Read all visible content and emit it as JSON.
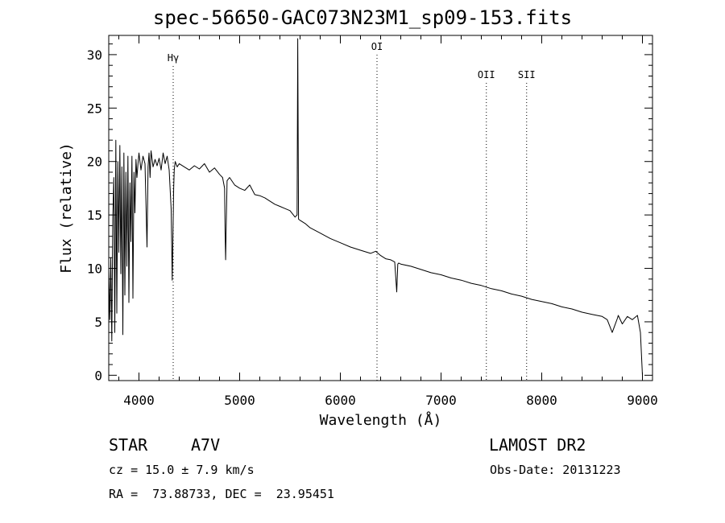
{
  "chart_data": {
    "type": "line",
    "title": "spec-56650-GAC073N23M1_sp09-153.fits",
    "xlabel": "Wavelength (Å)",
    "ylabel": "Flux (relative)",
    "xlim": [
      3700,
      9100
    ],
    "ylim": [
      -0.5,
      31.8
    ],
    "xticks": [
      4000,
      5000,
      6000,
      7000,
      8000,
      9000
    ],
    "yticks": [
      0,
      5,
      10,
      15,
      20,
      25,
      30
    ],
    "grid": false,
    "series": [
      {
        "x": [
          3700,
          3710,
          3720,
          3730,
          3740,
          3750,
          3760,
          3770,
          3780,
          3790,
          3800,
          3810,
          3820,
          3830,
          3840,
          3850,
          3860,
          3870,
          3880,
          3890,
          3900,
          3910,
          3920,
          3930,
          3940,
          3950,
          3960,
          3970,
          3980,
          3990,
          4000,
          4020,
          4040,
          4060,
          4080,
          4090,
          4100,
          4110,
          4120,
          4140,
          4160,
          4180,
          4200,
          4220,
          4240,
          4260,
          4280,
          4300,
          4320,
          4330,
          4340,
          4345,
          4350,
          4360,
          4380,
          4400,
          4450,
          4500,
          4550,
          4600,
          4650,
          4700,
          4750,
          4800,
          4830,
          4850,
          4855,
          4861,
          4866,
          4875,
          4900,
          4950,
          5000,
          5050,
          5100,
          5150,
          5200,
          5250,
          5300,
          5350,
          5400,
          5450,
          5500,
          5550,
          5570,
          5577,
          5585,
          5600,
          5650,
          5700,
          5800,
          5900,
          6000,
          6100,
          6200,
          6300,
          6350,
          6400,
          6450,
          6500,
          6540,
          6560,
          6570,
          6580,
          6600,
          6700,
          6800,
          6900,
          7000,
          7100,
          7200,
          7300,
          7400,
          7500,
          7600,
          7700,
          7800,
          7900,
          8000,
          8100,
          8200,
          8300,
          8400,
          8500,
          8600,
          8650,
          8700,
          8750,
          8760,
          8800,
          8850,
          8900,
          8950,
          8980,
          9000
        ],
        "values": [
          9.8,
          5.2,
          11.0,
          3.2,
          14.8,
          18.5,
          4.0,
          22.0,
          5.8,
          20.0,
          11.5,
          21.5,
          9.5,
          19.5,
          3.8,
          20.8,
          7.5,
          19.0,
          10.2,
          20.5,
          6.8,
          18.0,
          12.5,
          20.5,
          7.2,
          19.0,
          15.2,
          20.2,
          18.5,
          19.8,
          20.8,
          19.2,
          20.5,
          19.8,
          12.0,
          19.5,
          20.8,
          18.5,
          21.0,
          19.5,
          20.2,
          19.6,
          20.3,
          19.2,
          20.8,
          19.8,
          20.5,
          19.2,
          15.5,
          8.9,
          14.5,
          17.5,
          19.2,
          20.0,
          19.5,
          19.8,
          19.5,
          19.2,
          19.6,
          19.3,
          19.8,
          19.0,
          19.4,
          18.8,
          18.5,
          17.5,
          13.5,
          10.8,
          14.0,
          18.2,
          18.5,
          17.8,
          17.5,
          17.3,
          17.8,
          16.9,
          16.8,
          16.6,
          16.3,
          16.0,
          15.8,
          15.6,
          15.4,
          14.8,
          15.0,
          31.5,
          14.6,
          14.5,
          14.2,
          13.8,
          13.3,
          12.8,
          12.4,
          12.0,
          11.7,
          11.4,
          11.6,
          11.2,
          10.9,
          10.8,
          10.6,
          7.8,
          10.4,
          10.5,
          10.4,
          10.2,
          9.9,
          9.6,
          9.4,
          9.1,
          8.9,
          8.6,
          8.4,
          8.1,
          7.9,
          7.6,
          7.4,
          7.1,
          6.9,
          6.7,
          6.4,
          6.2,
          5.9,
          5.7,
          5.5,
          5.2,
          4.0,
          5.3,
          5.6,
          4.8,
          5.5,
          5.2,
          5.6,
          4.0,
          0.0
        ]
      }
    ],
    "annotations": [
      {
        "label": "Hγ",
        "x": 4340
      },
      {
        "label": "OI",
        "x": 6364
      },
      {
        "label": "OII",
        "x": 7450
      },
      {
        "label": "SII",
        "x": 7850
      }
    ]
  },
  "info": {
    "object_class": "STAR",
    "subclass": "A7V",
    "survey": "LAMOST DR2",
    "cz": "cz = 15.0 ± 7.9 km/s",
    "obs_date": "Obs-Date: 20131223",
    "coords": "RA =  73.88733, DEC =  23.95451"
  }
}
